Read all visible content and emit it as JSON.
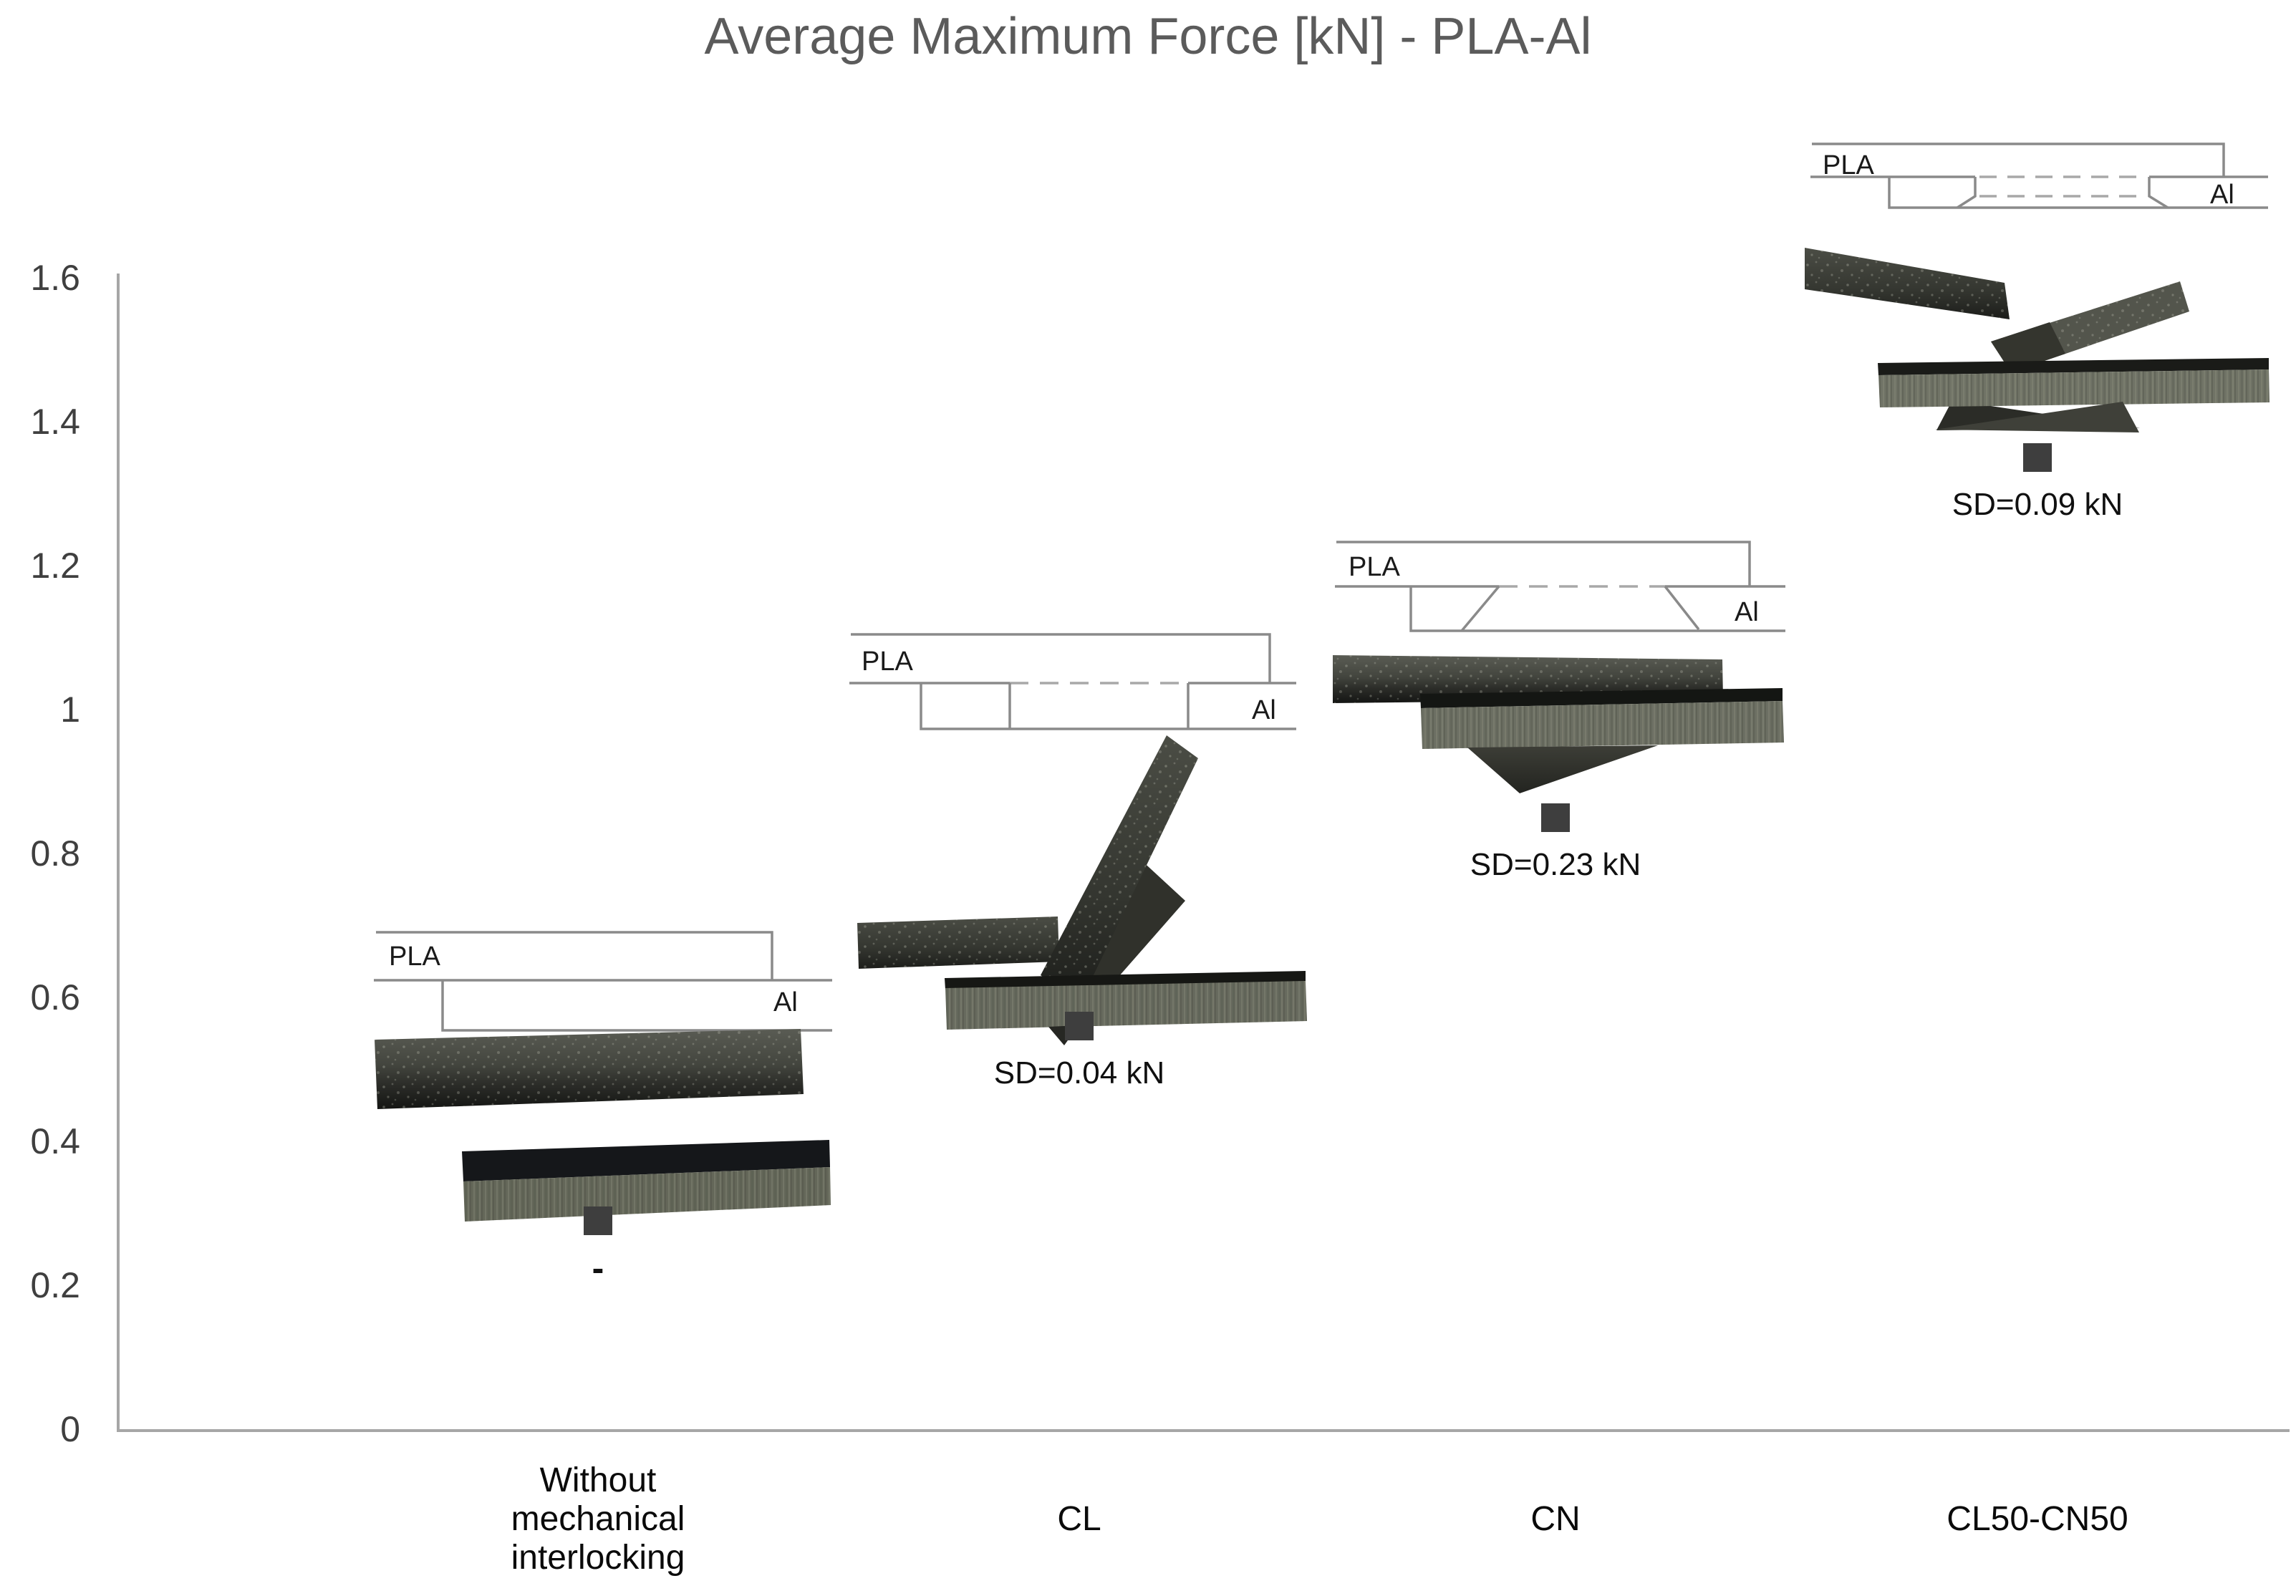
{
  "chart_data": {
    "type": "scatter",
    "title": "Average Maximum Force [kN] - PLA-Al",
    "categories": [
      "Without mechanical interlocking",
      "CL",
      "CN",
      "CL50-CN50"
    ],
    "values": [
      0.29,
      0.56,
      0.85,
      1.35
    ],
    "sd_labels": [
      "-",
      "SD=0.04 kN",
      "SD=0.23 kN",
      "SD=0.09 kN"
    ],
    "units": "kN",
    "xlabel": "",
    "ylabel": "",
    "ylim": [
      0,
      1.6
    ],
    "yticks": [
      0,
      0.2,
      0.4,
      0.6,
      0.8,
      1,
      1.2,
      1.4,
      1.6
    ],
    "ytick_labels": [
      "0",
      "0.2",
      "0.4",
      "0.6",
      "0.8",
      "1",
      "1.2",
      "1.4",
      "1.6"
    ],
    "grid": false,
    "legend": false,
    "marker": "square",
    "marker_color": "#3e3e3e"
  },
  "annotations": {
    "pla_label": "PLA",
    "al_label": "Al"
  },
  "colors": {
    "title_text": "#5b5b5b",
    "axis_line": "#a6a6a6",
    "tick_text": "#3f3f3f",
    "category_text": "#0a0a0a",
    "schematic_line": "#8a8a8a",
    "specimen_dark": "#2e2f2a",
    "specimen_light_face": "#6a6d61"
  }
}
